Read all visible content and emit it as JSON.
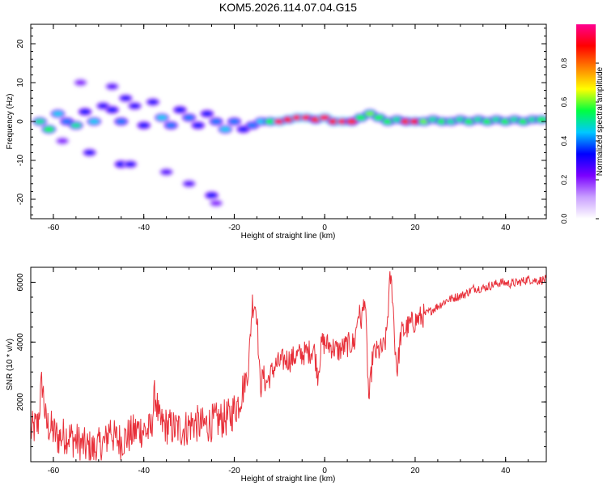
{
  "title": "KOM5.2026.114.07.04.G15",
  "chart_data": [
    {
      "type": "heatmap",
      "name": "spectrogram",
      "xlabel": "Height of straight line (km)",
      "ylabel": "Frequency (Hz)",
      "xlim": [
        -65,
        49
      ],
      "ylim": [
        -25,
        25
      ],
      "xticks": [
        "-60",
        "-40",
        "-20",
        "0",
        "20",
        "40"
      ],
      "xtick_values": [
        -60,
        -40,
        -20,
        0,
        20,
        40
      ],
      "yticks": [
        "20",
        "10",
        "0",
        "-10",
        "-20"
      ],
      "ytick_values": [
        20,
        10,
        0,
        -10,
        -20
      ],
      "colorbar": {
        "label": "Normalized spectral amplitude",
        "range": [
          0,
          1
        ],
        "ticks": [
          "0.0",
          "0.2",
          "0.4",
          "0.6",
          "0.8"
        ],
        "tick_values": [
          0.0,
          0.2,
          0.4,
          0.6,
          0.8
        ],
        "colors": [
          "#ffffff",
          "#c9a0ff",
          "#7a00ff",
          "#0000ff",
          "#00c8ff",
          "#00ff40",
          "#ffff00",
          "#ff8000",
          "#ff0000",
          "#ff0090"
        ]
      },
      "blobs": [
        {
          "x": -63,
          "f": 0,
          "a": 0.5
        },
        {
          "x": -61,
          "f": -2,
          "a": 0.55
        },
        {
          "x": -59,
          "f": 2,
          "a": 0.45
        },
        {
          "x": -57,
          "f": 0,
          "a": 0.4
        },
        {
          "x": -55,
          "f": -1,
          "a": 0.5
        },
        {
          "x": -53,
          "f": 2.5,
          "a": 0.35
        },
        {
          "x": -51,
          "f": 0,
          "a": 0.45
        },
        {
          "x": -49,
          "f": 4,
          "a": 0.3
        },
        {
          "x": -47,
          "f": 3,
          "a": 0.35
        },
        {
          "x": -45,
          "f": 0,
          "a": 0.4
        },
        {
          "x": -44,
          "f": 6,
          "a": 0.3
        },
        {
          "x": -42,
          "f": 4,
          "a": 0.3
        },
        {
          "x": -40,
          "f": -1,
          "a": 0.35
        },
        {
          "x": -38,
          "f": 5,
          "a": 0.3
        },
        {
          "x": -36,
          "f": 1,
          "a": 0.45
        },
        {
          "x": -34,
          "f": -1,
          "a": 0.4
        },
        {
          "x": -32,
          "f": 3,
          "a": 0.35
        },
        {
          "x": -30,
          "f": 1,
          "a": 0.4
        },
        {
          "x": -28,
          "f": -1,
          "a": 0.35
        },
        {
          "x": -26,
          "f": 2,
          "a": 0.35
        },
        {
          "x": -24,
          "f": 0,
          "a": 0.4
        },
        {
          "x": -22,
          "f": -2,
          "a": 0.45
        },
        {
          "x": -20,
          "f": 0,
          "a": 0.4
        },
        {
          "x": -18,
          "f": -2,
          "a": 0.35
        },
        {
          "x": -16,
          "f": -1,
          "a": 0.4
        },
        {
          "x": -14,
          "f": 0,
          "a": 0.45
        },
        {
          "x": -12,
          "f": 0,
          "a": 0.55
        },
        {
          "x": -10,
          "f": 0,
          "a": 0.95
        },
        {
          "x": -8,
          "f": 0.5,
          "a": 0.9
        },
        {
          "x": -6,
          "f": 1,
          "a": 0.95
        },
        {
          "x": -4,
          "f": 1,
          "a": 0.95
        },
        {
          "x": -2,
          "f": 0.5,
          "a": 0.85
        },
        {
          "x": 0,
          "f": 1,
          "a": 0.95
        },
        {
          "x": 2,
          "f": 0,
          "a": 0.9
        },
        {
          "x": 4,
          "f": 0,
          "a": 0.95
        },
        {
          "x": 6,
          "f": 0,
          "a": 0.85
        },
        {
          "x": 8,
          "f": 1,
          "a": 0.55
        },
        {
          "x": 10,
          "f": 2,
          "a": 0.6
        },
        {
          "x": 12,
          "f": 1,
          "a": 0.55
        },
        {
          "x": 14,
          "f": 0,
          "a": 0.55
        },
        {
          "x": 16,
          "f": 0.5,
          "a": 0.5
        },
        {
          "x": 18,
          "f": 0,
          "a": 0.85
        },
        {
          "x": 20,
          "f": 0,
          "a": 0.9
        },
        {
          "x": 22,
          "f": 0,
          "a": 0.6
        },
        {
          "x": 24,
          "f": 0.5,
          "a": 0.5
        },
        {
          "x": 26,
          "f": 0,
          "a": 0.55
        },
        {
          "x": 28,
          "f": 0,
          "a": 0.5
        },
        {
          "x": 30,
          "f": 0.5,
          "a": 0.5
        },
        {
          "x": 32,
          "f": 0,
          "a": 0.55
        },
        {
          "x": 34,
          "f": 0.5,
          "a": 0.5
        },
        {
          "x": 36,
          "f": 0,
          "a": 0.55
        },
        {
          "x": 38,
          "f": 0.5,
          "a": 0.5
        },
        {
          "x": 40,
          "f": 0,
          "a": 0.55
        },
        {
          "x": 42,
          "f": 0.5,
          "a": 0.5
        },
        {
          "x": 44,
          "f": 0,
          "a": 0.55
        },
        {
          "x": 46,
          "f": 0.5,
          "a": 0.5
        },
        {
          "x": 48,
          "f": 0.5,
          "a": 0.55
        },
        {
          "x": -52,
          "f": -8,
          "a": 0.3
        },
        {
          "x": -45,
          "f": -11,
          "a": 0.35
        },
        {
          "x": -43,
          "f": -11,
          "a": 0.3
        },
        {
          "x": -35,
          "f": -13,
          "a": 0.25
        },
        {
          "x": -30,
          "f": -16,
          "a": 0.25
        },
        {
          "x": -25,
          "f": -19,
          "a": 0.35
        },
        {
          "x": -24,
          "f": -21,
          "a": 0.2
        },
        {
          "x": -47,
          "f": 9,
          "a": 0.25
        },
        {
          "x": -54,
          "f": 10,
          "a": 0.2
        },
        {
          "x": -58,
          "f": -5,
          "a": 0.2
        }
      ]
    },
    {
      "type": "line",
      "name": "snr",
      "xlabel": "Height of straight line (km)",
      "ylabel": "SNR (10 * v/v)",
      "xlim": [
        -65,
        49
      ],
      "ylim": [
        0,
        6500
      ],
      "xticks": [
        "-60",
        "-40",
        "-20",
        "0",
        "20",
        "40"
      ],
      "xtick_values": [
        -60,
        -40,
        -20,
        0,
        20,
        40
      ],
      "yticks": [
        "6000",
        "4000",
        "2000"
      ],
      "ytick_values": [
        6000,
        4000,
        2000
      ],
      "color": "#e8303a",
      "x": [
        -65,
        -63,
        -61,
        -59,
        -57,
        -55,
        -53,
        -51,
        -49,
        -47,
        -45,
        -43,
        -41,
        -39,
        -37,
        -35,
        -33,
        -31,
        -29,
        -27,
        -25,
        -23,
        -21,
        -19,
        -17,
        -15,
        -13,
        -11,
        -9,
        -7,
        -5,
        -3,
        -1,
        1,
        3,
        5,
        7,
        9,
        11,
        13,
        15,
        17,
        19,
        21,
        23,
        25,
        27,
        29,
        31,
        33,
        35,
        37,
        39,
        41,
        43,
        45,
        47,
        49
      ],
      "y": [
        1000,
        1300,
        1200,
        800,
        900,
        700,
        500,
        400,
        600,
        800,
        700,
        900,
        1100,
        1000,
        1300,
        1200,
        1100,
        1100,
        1300,
        1200,
        1300,
        1400,
        1500,
        2000,
        3000,
        3600,
        2600,
        3200,
        3400,
        3500,
        3600,
        3700,
        4000,
        3900,
        3700,
        3900,
        4000,
        4200,
        3600,
        3800,
        4900,
        4300,
        4600,
        4800,
        5000,
        5200,
        5400,
        5500,
        5600,
        5800,
        5800,
        5900,
        6000,
        5950,
        6000,
        6100,
        6050,
        6100
      ],
      "features": [
        {
          "x": -62.5,
          "y": 2700
        },
        {
          "x": -47.5,
          "y": 1200
        },
        {
          "x": -37.5,
          "y": 2300
        },
        {
          "x": -16,
          "y": 5400
        },
        {
          "x": -15,
          "y": 5600
        },
        {
          "x": -14.5,
          "y": 2200
        },
        {
          "x": -7.5,
          "y": 3400
        },
        {
          "x": -1.5,
          "y": 2900
        },
        {
          "x": 7.5,
          "y": 5100
        },
        {
          "x": 8.8,
          "y": 5600
        },
        {
          "x": 9.8,
          "y": 2000
        },
        {
          "x": 14.5,
          "y": 6200
        },
        {
          "x": 16,
          "y": 3000
        }
      ]
    }
  ]
}
